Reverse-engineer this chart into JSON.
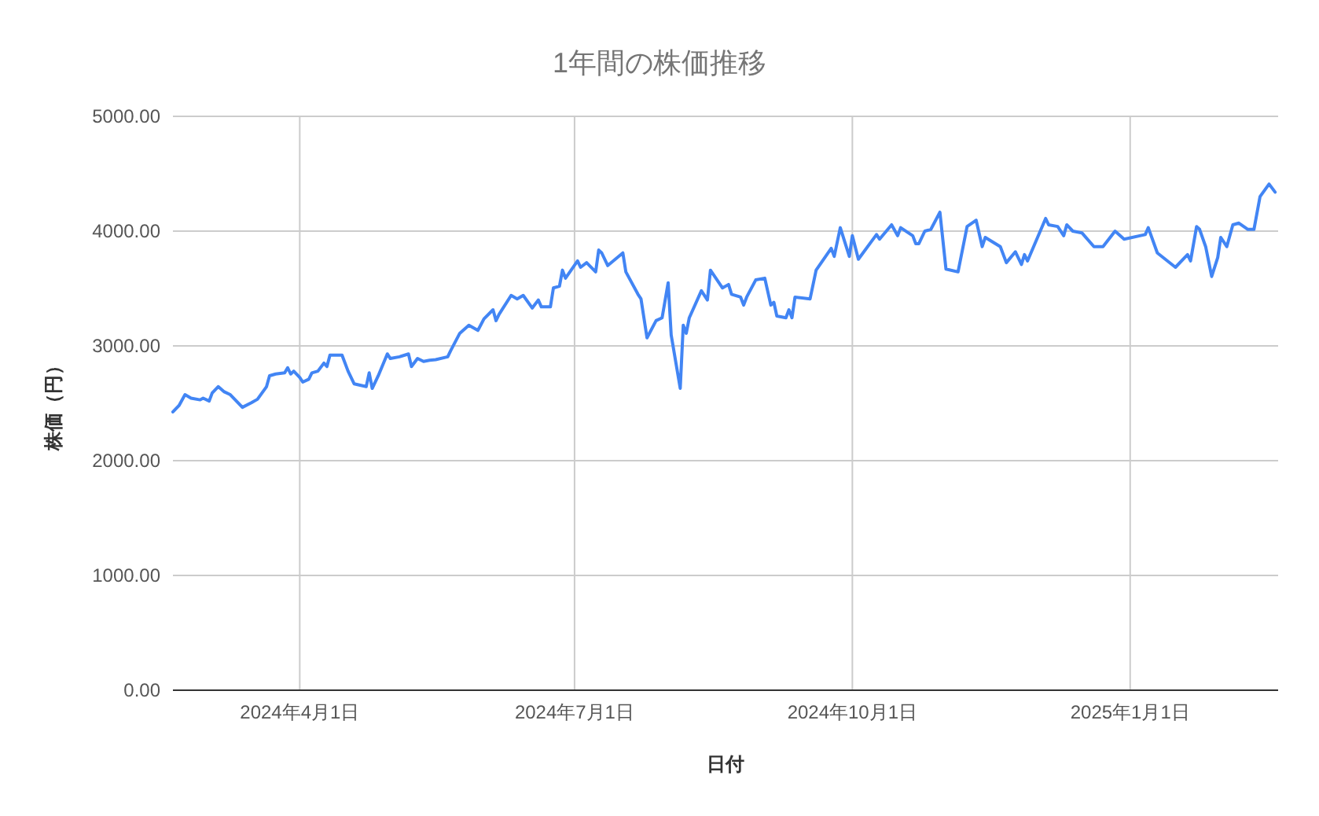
{
  "chart_data": {
    "type": "line",
    "title": "1年間の株価推移",
    "xlabel": "日付",
    "ylabel": "株価（円）",
    "xlim": [
      "2024-02-19",
      "2025-02-19"
    ],
    "xticks": [
      {
        "value": "2024-04-01",
        "label": "2024年4月1日"
      },
      {
        "value": "2024-07-01",
        "label": "2024年7月1日"
      },
      {
        "value": "2024-10-01",
        "label": "2024年10月1日"
      },
      {
        "value": "2025-01-01",
        "label": "2025年1月1日"
      }
    ],
    "ylim": [
      0,
      5000
    ],
    "yticks": [
      {
        "value": 0,
        "label": "0.00"
      },
      {
        "value": 1000,
        "label": "1000.00"
      },
      {
        "value": 2000,
        "label": "2000.00"
      },
      {
        "value": 3000,
        "label": "3000.00"
      },
      {
        "value": 4000,
        "label": "4000.00"
      },
      {
        "value": 5000,
        "label": "5000.00"
      }
    ],
    "grid": true,
    "series": [
      {
        "color": "#4285f4",
        "x": [
          "2024-02-19",
          "2024-02-21",
          "2024-02-23",
          "2024-02-25",
          "2024-02-28",
          "2024-02-29",
          "2024-03-02",
          "2024-03-03",
          "2024-03-05",
          "2024-03-07",
          "2024-03-09",
          "2024-03-13",
          "2024-03-16",
          "2024-03-18",
          "2024-03-21",
          "2024-03-22",
          "2024-03-24",
          "2024-03-27",
          "2024-03-28",
          "2024-03-29",
          "2024-03-30",
          "2024-04-01",
          "2024-04-02",
          "2024-04-04",
          "2024-04-05",
          "2024-04-07",
          "2024-04-09",
          "2024-04-10",
          "2024-04-11",
          "2024-04-15",
          "2024-04-17",
          "2024-04-19",
          "2024-04-23",
          "2024-04-24",
          "2024-04-25",
          "2024-04-27",
          "2024-04-30",
          "2024-05-01",
          "2024-05-04",
          "2024-05-07",
          "2024-05-08",
          "2024-05-10",
          "2024-05-12",
          "2024-05-14",
          "2024-05-16",
          "2024-05-20",
          "2024-05-21",
          "2024-05-24",
          "2024-05-27",
          "2024-05-30",
          "2024-06-01",
          "2024-06-04",
          "2024-06-05",
          "2024-06-06",
          "2024-06-10",
          "2024-06-12",
          "2024-06-14",
          "2024-06-17",
          "2024-06-19",
          "2024-06-20",
          "2024-06-23",
          "2024-06-24",
          "2024-06-26",
          "2024-06-27",
          "2024-06-28",
          "2024-07-02",
          "2024-07-03",
          "2024-07-05",
          "2024-07-08",
          "2024-07-09",
          "2024-07-10",
          "2024-07-12",
          "2024-07-17",
          "2024-07-18",
          "2024-07-22",
          "2024-07-23",
          "2024-07-25",
          "2024-07-28",
          "2024-07-30",
          "2024-08-01",
          "2024-08-02",
          "2024-08-05",
          "2024-08-06",
          "2024-08-07",
          "2024-08-08",
          "2024-08-12",
          "2024-08-14",
          "2024-08-15",
          "2024-08-19",
          "2024-08-21",
          "2024-08-22",
          "2024-08-25",
          "2024-08-26",
          "2024-08-27",
          "2024-08-30",
          "2024-09-02",
          "2024-09-04",
          "2024-09-05",
          "2024-09-06",
          "2024-09-09",
          "2024-09-10",
          "2024-09-11",
          "2024-09-12",
          "2024-09-17",
          "2024-09-19",
          "2024-09-24",
          "2024-09-25",
          "2024-09-27",
          "2024-09-30",
          "2024-10-01",
          "2024-10-03",
          "2024-10-09",
          "2024-10-10",
          "2024-10-14",
          "2024-10-16",
          "2024-10-17",
          "2024-10-21",
          "2024-10-22",
          "2024-10-23",
          "2024-10-25",
          "2024-10-27",
          "2024-10-30",
          "2024-11-01",
          "2024-11-05",
          "2024-11-08",
          "2024-11-11",
          "2024-11-13",
          "2024-11-14",
          "2024-11-19",
          "2024-11-21",
          "2024-11-24",
          "2024-11-26",
          "2024-11-27",
          "2024-11-28",
          "2024-12-04",
          "2024-12-05",
          "2024-12-08",
          "2024-12-10",
          "2024-12-11",
          "2024-12-13",
          "2024-12-16",
          "2024-12-20",
          "2024-12-23",
          "2024-12-27",
          "2024-12-30",
          "2025-01-06",
          "2025-01-07",
          "2025-01-10",
          "2025-01-16",
          "2025-01-20",
          "2025-01-21",
          "2025-01-23",
          "2025-01-24",
          "2025-01-26",
          "2025-01-28",
          "2025-01-30",
          "2025-01-31",
          "2025-02-02",
          "2025-02-04",
          "2025-02-06",
          "2025-02-09",
          "2025-02-11",
          "2025-02-13",
          "2025-02-16",
          "2025-02-18"
        ],
        "values": [
          2425,
          2480,
          2575,
          2545,
          2530,
          2545,
          2520,
          2590,
          2645,
          2600,
          2575,
          2465,
          2505,
          2535,
          2645,
          2740,
          2755,
          2765,
          2810,
          2755,
          2780,
          2725,
          2685,
          2710,
          2765,
          2780,
          2850,
          2820,
          2920,
          2920,
          2780,
          2670,
          2645,
          2765,
          2630,
          2740,
          2930,
          2890,
          2905,
          2930,
          2820,
          2890,
          2865,
          2875,
          2880,
          2905,
          2960,
          3110,
          3180,
          3135,
          3235,
          3315,
          3220,
          3275,
          3440,
          3410,
          3440,
          3330,
          3400,
          3340,
          3340,
          3505,
          3520,
          3660,
          3590,
          3740,
          3685,
          3725,
          3645,
          3835,
          3810,
          3700,
          3810,
          3645,
          3450,
          3410,
          3070,
          3220,
          3245,
          3550,
          3095,
          2630,
          3180,
          3110,
          3245,
          3480,
          3400,
          3660,
          3505,
          3535,
          3450,
          3425,
          3355,
          3425,
          3575,
          3590,
          3355,
          3380,
          3260,
          3245,
          3315,
          3245,
          3425,
          3410,
          3660,
          3850,
          3780,
          4030,
          3780,
          3960,
          3755,
          3970,
          3930,
          4055,
          3960,
          4030,
          3960,
          3890,
          3890,
          4000,
          4015,
          4165,
          3670,
          3645,
          4040,
          4095,
          3865,
          3945,
          3865,
          3725,
          3820,
          3710,
          3795,
          3740,
          4110,
          4055,
          4040,
          3960,
          4055,
          4000,
          3985,
          3865,
          3865,
          4000,
          3930,
          3970,
          4030,
          3810,
          3685,
          3795,
          3740,
          4040,
          4015,
          3865,
          3605,
          3770,
          3945,
          3865,
          4055,
          4070,
          4015,
          4015,
          4300,
          4410,
          4340
        ]
      }
    ]
  }
}
